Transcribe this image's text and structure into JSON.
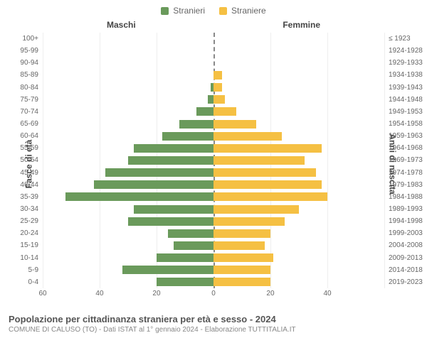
{
  "legend": {
    "male": {
      "label": "Stranieri",
      "color": "#6a9a5b"
    },
    "female": {
      "label": "Straniere",
      "color": "#f5c043"
    }
  },
  "column_headers": {
    "male": "Maschi",
    "female": "Femmine"
  },
  "axis_titles": {
    "left": "Fasce di età",
    "right": "Anni di nascita"
  },
  "title": "Popolazione per cittadinanza straniera per età e sesso - 2024",
  "subtitle": "COMUNE DI CALUSO (TO) - Dati ISTAT al 1° gennaio 2024 - Elaborazione TUTTITALIA.IT",
  "chart": {
    "type": "pyramid-bar",
    "xmax": 60,
    "xtick_step": 20,
    "xticks_left": [
      60,
      40,
      20,
      0
    ],
    "xticks_right": [
      20,
      40
    ],
    "background_color": "#ffffff",
    "grid_color": "#eeeeee",
    "bar_gap_ratio": 0.3,
    "rows": [
      {
        "age": "100+",
        "birth": "≤ 1923",
        "male": 0,
        "female": 0
      },
      {
        "age": "95-99",
        "birth": "1924-1928",
        "male": 0,
        "female": 0
      },
      {
        "age": "90-94",
        "birth": "1929-1933",
        "male": 0,
        "female": 0
      },
      {
        "age": "85-89",
        "birth": "1934-1938",
        "male": 0,
        "female": 3
      },
      {
        "age": "80-84",
        "birth": "1939-1943",
        "male": 1,
        "female": 3
      },
      {
        "age": "75-79",
        "birth": "1944-1948",
        "male": 2,
        "female": 4
      },
      {
        "age": "70-74",
        "birth": "1949-1953",
        "male": 6,
        "female": 8
      },
      {
        "age": "65-69",
        "birth": "1954-1958",
        "male": 12,
        "female": 15
      },
      {
        "age": "60-64",
        "birth": "1959-1963",
        "male": 18,
        "female": 24
      },
      {
        "age": "55-59",
        "birth": "1964-1968",
        "male": 28,
        "female": 38
      },
      {
        "age": "50-54",
        "birth": "1969-1973",
        "male": 30,
        "female": 32
      },
      {
        "age": "45-49",
        "birth": "1974-1978",
        "male": 38,
        "female": 36
      },
      {
        "age": "40-44",
        "birth": "1979-1983",
        "male": 42,
        "female": 38
      },
      {
        "age": "35-39",
        "birth": "1984-1988",
        "male": 52,
        "female": 40
      },
      {
        "age": "30-34",
        "birth": "1989-1993",
        "male": 28,
        "female": 30
      },
      {
        "age": "25-29",
        "birth": "1994-1998",
        "male": 30,
        "female": 25
      },
      {
        "age": "20-24",
        "birth": "1999-2003",
        "male": 16,
        "female": 20
      },
      {
        "age": "15-19",
        "birth": "2004-2008",
        "male": 14,
        "female": 18
      },
      {
        "age": "10-14",
        "birth": "2009-2013",
        "male": 20,
        "female": 21
      },
      {
        "age": "5-9",
        "birth": "2014-2018",
        "male": 32,
        "female": 20
      },
      {
        "age": "0-4",
        "birth": "2019-2023",
        "male": 20,
        "female": 20
      }
    ]
  }
}
